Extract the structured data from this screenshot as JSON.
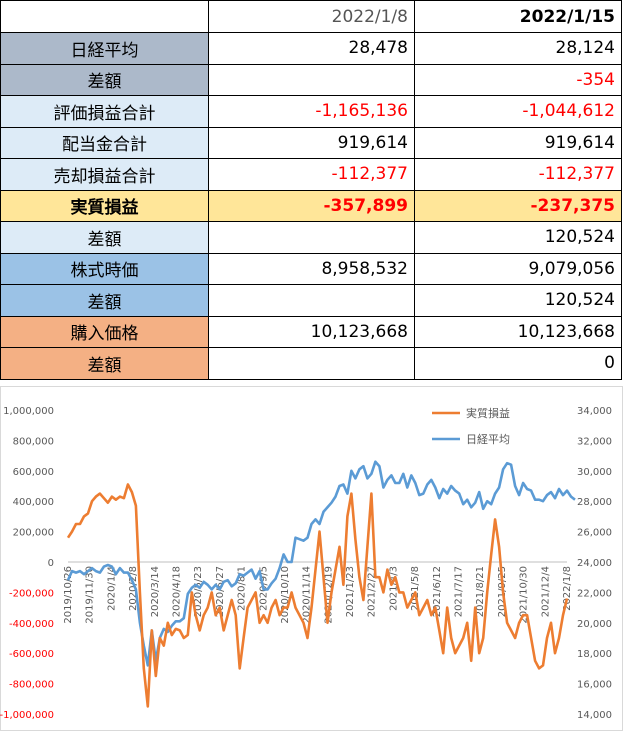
{
  "table": {
    "header": [
      "",
      "2022/1/8",
      "2022/1/15"
    ],
    "rows": [
      {
        "label": "日経平均",
        "v1": "28,478",
        "v2": "28,124",
        "c1": "",
        "c2": "",
        "bg": "bg-gray"
      },
      {
        "label": "差額",
        "v1": "",
        "v2": "-354",
        "c1": "",
        "c2": "neg",
        "bg": "bg-gray"
      },
      {
        "label": "評価損益合計",
        "v1": "-1,165,136",
        "v2": "-1,044,612",
        "c1": "neg",
        "c2": "neg",
        "bg": "bg-lb"
      },
      {
        "label": "配当金合計",
        "v1": "919,614",
        "v2": "919,614",
        "c1": "",
        "c2": "",
        "bg": "bg-lb"
      },
      {
        "label": "売却損益合計",
        "v1": "-112,377",
        "v2": "-112,377",
        "c1": "neg",
        "c2": "neg",
        "bg": "bg-lb"
      },
      {
        "label": "実質損益",
        "v1": "-357,899",
        "v2": "-237,375",
        "c1": "bold-red",
        "c2": "bold-red",
        "bg": "bg-yel"
      },
      {
        "label": "差額",
        "v1": "",
        "v2": "120,524",
        "c1": "",
        "c2": "",
        "bg": "bg-lb"
      },
      {
        "label": "株式時価",
        "v1": "8,958,532",
        "v2": "9,079,056",
        "c1": "",
        "c2": "",
        "bg": "bg-blue"
      },
      {
        "label": "差額",
        "v1": "",
        "v2": "120,524",
        "c1": "",
        "c2": "",
        "bg": "bg-blue"
      },
      {
        "label": "購入価格",
        "v1": "10,123,668",
        "v2": "10,123,668",
        "c1": "",
        "c2": "",
        "bg": "bg-or"
      },
      {
        "label": "差額",
        "v1": "",
        "v2": "0",
        "c1": "",
        "c2": "",
        "bg": "bg-or"
      }
    ]
  },
  "chart_data": {
    "type": "line",
    "y_left_ticks": [
      "1,000,000",
      "800,000",
      "600,000",
      "400,000",
      "200,000",
      "0",
      "-200,000",
      "-400,000",
      "-600,000",
      "-800,000",
      "-1,000,000"
    ],
    "y_right_ticks": [
      "34,000",
      "32,000",
      "30,000",
      "28,000",
      "26,000",
      "24,000",
      "22,000",
      "20,000",
      "18,000",
      "16,000",
      "14,000"
    ],
    "x_labels": [
      "2019/10/26",
      "2019/11/30",
      "2020/1/4",
      "2020/2/8",
      "2020/3/14",
      "2020/4/18",
      "2020/5/23",
      "2020/6/27",
      "2020/8/1",
      "2020/9/5",
      "2020/10/10",
      "2020/11/14",
      "2020/12/19",
      "2021/1/23",
      "2021/2/27",
      "2021/4/3",
      "2021/5/8",
      "2021/6/12",
      "2021/7/17",
      "2021/8/21",
      "2021/9/25",
      "2021/10/30",
      "2021/12/4",
      "2022/1/8"
    ],
    "ylim_left": [
      -1000000,
      1000000
    ],
    "ylim_right": [
      14000,
      34000
    ],
    "series": [
      {
        "name": "実質損益",
        "axis": "left",
        "color": "#ed7d31",
        "values": [
          160000,
          200000,
          250000,
          250000,
          300000,
          320000,
          400000,
          430000,
          450000,
          420000,
          390000,
          430000,
          410000,
          430000,
          420000,
          510000,
          460000,
          370000,
          -200000,
          -700000,
          -950000,
          -450000,
          -750000,
          -500000,
          -550000,
          -400000,
          -480000,
          -440000,
          -450000,
          -500000,
          -480000,
          -200000,
          -350000,
          -450000,
          -350000,
          -300000,
          -200000,
          -350000,
          -300000,
          -450000,
          -350000,
          -250000,
          -350000,
          -700000,
          -500000,
          -300000,
          -250000,
          -200000,
          -400000,
          -350000,
          -400000,
          -300000,
          -250000,
          -350000,
          -300000,
          -300000,
          -200000,
          -300000,
          -350000,
          -400000,
          -500000,
          -300000,
          -50000,
          200000,
          -100000,
          -400000,
          -200000,
          -50000,
          100000,
          -150000,
          300000,
          450000,
          150000,
          -100000,
          -250000,
          100000,
          450000,
          -100000,
          -100000,
          -200000,
          -50000,
          -150000,
          -100000,
          -200000,
          -200000,
          -300000,
          -250000,
          -200000,
          -350000,
          -300000,
          -250000,
          -350000,
          -300000,
          -450000,
          -600000,
          -300000,
          -500000,
          -600000,
          -550000,
          -500000,
          -400000,
          -650000,
          -300000,
          -600000,
          -500000,
          -200000,
          50000,
          280000,
          100000,
          -200000,
          -400000,
          -450000,
          -500000,
          -400000,
          -350000,
          -350000,
          -500000,
          -650000,
          -700000,
          -680000,
          -500000,
          -400000,
          -600000,
          -500000,
          -350000,
          -240000
        ]
      },
      {
        "name": "日経平均",
        "axis": "right",
        "color": "#5b9bd5",
        "values": [
          22800,
          23400,
          23300,
          23400,
          23200,
          23400,
          23600,
          23400,
          23300,
          23700,
          23800,
          23700,
          23200,
          23600,
          23300,
          23300,
          22800,
          22200,
          20000,
          18500,
          17200,
          19500,
          17500,
          19000,
          19600,
          19400,
          19800,
          20100,
          20100,
          20300,
          21900,
          22300,
          22500,
          22300,
          22700,
          22500,
          22200,
          22500,
          22200,
          22700,
          22800,
          22400,
          22600,
          23200,
          23100,
          23300,
          23500,
          22900,
          23400,
          22200,
          22200,
          22600,
          22900,
          23600,
          24500,
          24000,
          24000,
          25600,
          25500,
          25400,
          25600,
          26500,
          26800,
          26500,
          27300,
          27600,
          27900,
          28300,
          29000,
          29100,
          28500,
          30000,
          29500,
          30100,
          30300,
          29500,
          29800,
          30600,
          30300,
          28900,
          29400,
          29700,
          29200,
          29200,
          29800,
          28900,
          29700,
          29200,
          28400,
          28500,
          29100,
          29400,
          28900,
          28200,
          28800,
          28500,
          29000,
          28700,
          28500,
          27800,
          28100,
          27600,
          27900,
          28600,
          27500,
          28000,
          27800,
          28500,
          28900,
          30100,
          30500,
          30400,
          29000,
          28400,
          29200,
          28800,
          28700,
          28100,
          28100,
          28000,
          28400,
          28600,
          28200,
          28800,
          28400,
          28700,
          28300,
          28100
        ]
      }
    ]
  }
}
